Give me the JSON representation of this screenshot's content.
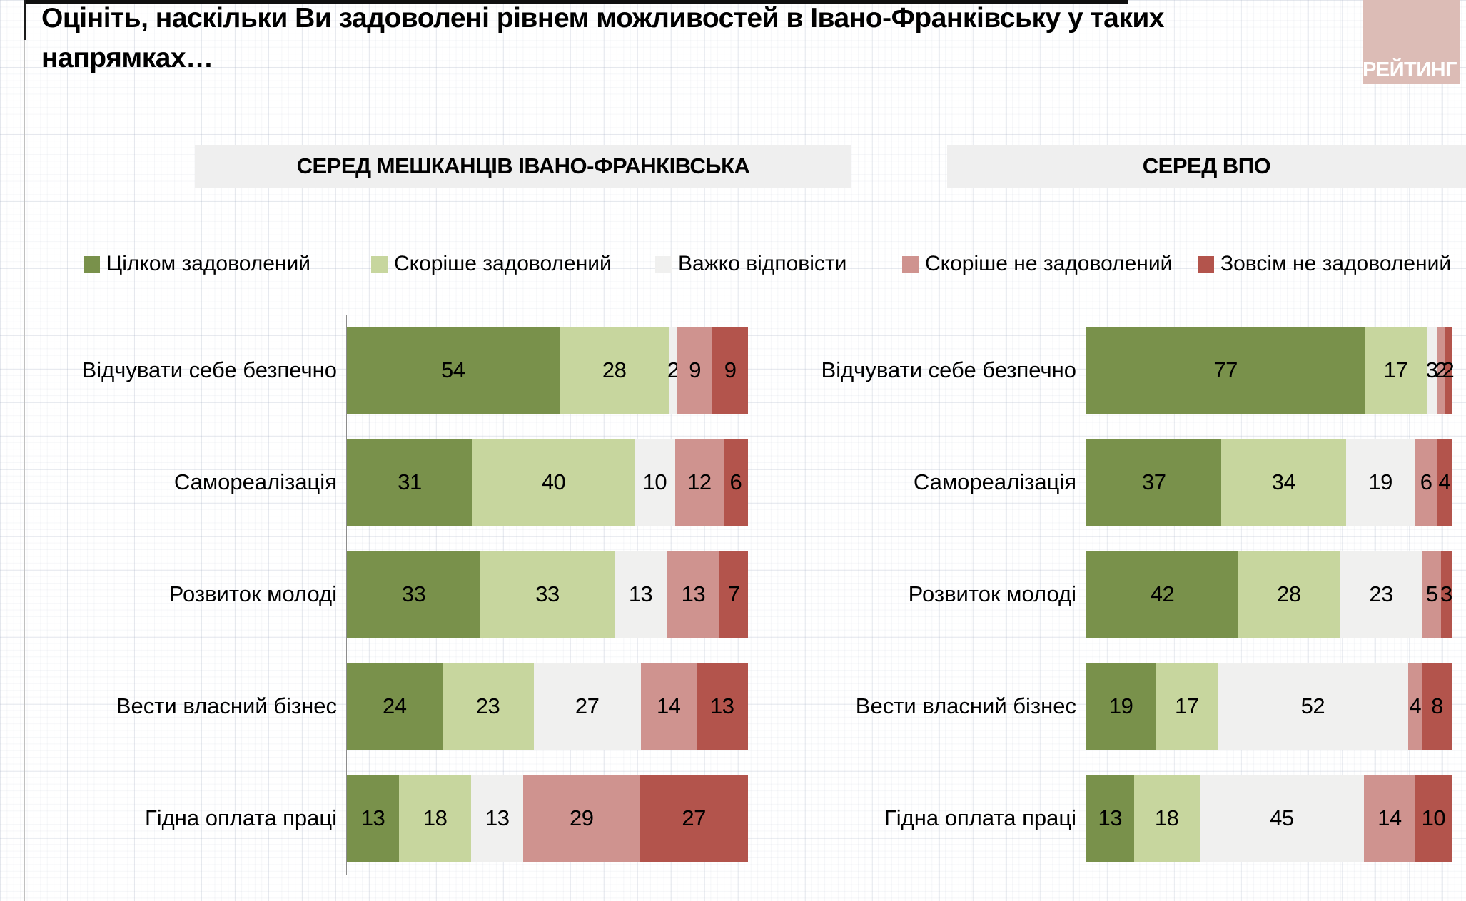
{
  "title": "Оцініть, наскільки Ви задоволені рівнем можливостей в Івано-Франківську у таких напрямках…",
  "logo_text": "РЕЙТИНГ",
  "colors": {
    "fully_satisfied": "#79914B",
    "rather_satisfied": "#C7D69E",
    "hard_to_say": "#F0F0EF",
    "rather_unsatisfied": "#CF938F",
    "fully_unsatisfied": "#B3544C",
    "band_background": "#EFEFEF",
    "logo_background": "#DCBCB6",
    "axis": "#8C8C8C"
  },
  "legend": [
    {
      "label": "Цілком задоволений",
      "color": "#79914B"
    },
    {
      "label": "Скоріше задоволений",
      "color": "#C7D69E"
    },
    {
      "label": "Важко відповісти",
      "color": "#F0F0EF"
    },
    {
      "label": "Скоріше не задоволений",
      "color": "#CF938F"
    },
    {
      "label": "Зовсім не задоволений",
      "color": "#B3544C"
    }
  ],
  "chart_data": [
    {
      "type": "bar",
      "orientation": "horizontal",
      "stacked": true,
      "unit": "percent",
      "title": "СЕРЕД МЕШКАНЦІВ ІВАНО-ФРАНКІВСЬКА",
      "legend_position": "top",
      "grid": false,
      "categories": [
        "Відчувати себе безпечно",
        "Самореалізація",
        "Розвиток молоді",
        "Вести власний бізнес",
        "Гідна оплата праці"
      ],
      "series": [
        {
          "name": "Цілком задоволений",
          "values": [
            54,
            31,
            33,
            24,
            13
          ]
        },
        {
          "name": "Скоріше задоволений",
          "values": [
            28,
            40,
            33,
            23,
            18
          ]
        },
        {
          "name": "Важко відповісти",
          "values": [
            2,
            10,
            13,
            27,
            13
          ]
        },
        {
          "name": "Скоріше не задоволений",
          "values": [
            9,
            12,
            13,
            14,
            29
          ]
        },
        {
          "name": "Зовсім не задоволений",
          "values": [
            9,
            6,
            7,
            13,
            27
          ]
        }
      ]
    },
    {
      "type": "bar",
      "orientation": "horizontal",
      "stacked": true,
      "unit": "percent",
      "title": "СЕРЕД ВПО",
      "legend_position": "top",
      "grid": false,
      "categories": [
        "Відчувати себе безпечно",
        "Самореалізація",
        "Розвиток молоді",
        "Вести власний бізнес",
        "Гідна оплата праці"
      ],
      "series": [
        {
          "name": "Цілком задоволений",
          "values": [
            77,
            37,
            42,
            19,
            13
          ]
        },
        {
          "name": "Скоріше задоволений",
          "values": [
            17,
            34,
            28,
            17,
            18
          ]
        },
        {
          "name": "Важко відповісти",
          "values": [
            3,
            19,
            23,
            52,
            45
          ]
        },
        {
          "name": "Скоріше не задоволений",
          "values": [
            2,
            6,
            5,
            4,
            14
          ]
        },
        {
          "name": "Зовсім не задоволений",
          "values": [
            2,
            4,
            3,
            8,
            10
          ]
        }
      ]
    }
  ]
}
